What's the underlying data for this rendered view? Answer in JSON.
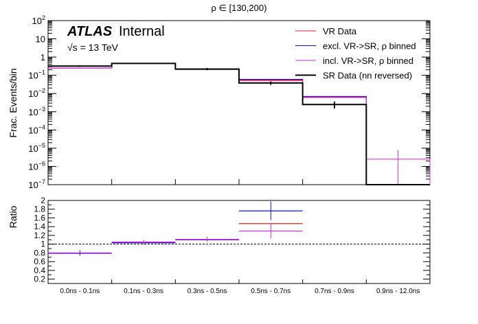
{
  "chart_data": [
    {
      "type": "step",
      "title": "ρ ∈ [130,200)",
      "ylabel": "Frac. Events/bin",
      "yscale": "log",
      "ylim": [
        1e-07,
        100
      ],
      "y_ticks": [
        {
          "value": 1e-07,
          "label": "10",
          "exp": "−7"
        },
        {
          "value": 1e-06,
          "label": "10",
          "exp": "−6"
        },
        {
          "value": 1e-05,
          "label": "10",
          "exp": "−5"
        },
        {
          "value": 0.0001,
          "label": "10",
          "exp": "−4"
        },
        {
          "value": 0.001,
          "label": "10",
          "exp": "−3"
        },
        {
          "value": 0.01,
          "label": "10",
          "exp": "−2"
        },
        {
          "value": 0.1,
          "label": "10",
          "exp": "−1"
        },
        {
          "value": 1,
          "label": "1",
          "exp": ""
        },
        {
          "value": 10,
          "label": "10",
          "exp": ""
        },
        {
          "value": 100,
          "label": "10",
          "exp": "2"
        }
      ],
      "categories": [
        "0.0ns - 0.1ns",
        "0.1ns - 0.3ns",
        "0.3ns - 0.5ns",
        "0.5ns - 0.7ns",
        "0.7ns - 0.9ns",
        "0.9ns - 12.0ns"
      ],
      "series": [
        {
          "name": "VR Data",
          "color": "#e0201b",
          "values": [
            0.25,
            0.45,
            0.21,
            0.055,
            0.0065,
            0
          ]
        },
        {
          "name": "excl. VR->SR, ρ binned",
          "color": "#0a14d0",
          "values": [
            0.25,
            0.46,
            0.21,
            0.06,
            0.007,
            0
          ]
        },
        {
          "name": "incl. VR->SR, ρ binned",
          "color": "#e020e0",
          "values": [
            0.25,
            0.46,
            0.22,
            0.05,
            0.006,
            2.5e-06
          ],
          "errors": [
            null,
            null,
            null,
            null,
            null,
            [
              1e-07,
              8e-06
            ]
          ]
        },
        {
          "name": "SR Data (nn reversed)",
          "color": "#000000",
          "values": [
            0.32,
            0.45,
            0.22,
            0.038,
            0.0025,
            0
          ],
          "errors": [
            [
              0.29,
              0.35
            ],
            [
              0.42,
              0.48
            ],
            [
              0.19,
              0.25
            ],
            [
              0.03,
              0.046
            ],
            [
              0.0015,
              0.0036
            ],
            null
          ]
        }
      ],
      "annotations": {
        "atlas": "ATLAS",
        "atlas_suffix": "Internal",
        "sqrt_s": "√s = 13 TeV"
      },
      "legend_placement": "top-right"
    },
    {
      "type": "ratio",
      "ylabel": "Ratio",
      "ylim": [
        0.1,
        2.0
      ],
      "y_ticks": [
        0.2,
        0.4,
        0.6,
        0.8,
        1,
        1.2,
        1.4,
        1.6,
        1.8,
        2
      ],
      "reference_line": 1,
      "series": [
        {
          "name": "VR Data",
          "color": "#e0201b",
          "values": [
            0.8,
            1.04,
            1.1,
            1.47,
            null,
            null
          ]
        },
        {
          "name": "excl. VR->SR, ρ binned",
          "color": "#0a14d0",
          "values": [
            0.79,
            1.03,
            1.1,
            1.76,
            null,
            null
          ],
          "errors": [
            [
              0.74,
              0.86
            ],
            null,
            null,
            [
              1.55,
              1.98
            ],
            null,
            null
          ]
        },
        {
          "name": "incl. VR->SR, ρ binned",
          "color": "#e020e0",
          "values": [
            0.8,
            1.05,
            1.11,
            1.3,
            null,
            null
          ],
          "errors": [
            null,
            [
              0.99,
              1.1
            ],
            [
              1.05,
              1.17
            ],
            [
              1.13,
              1.48
            ],
            null,
            null
          ]
        }
      ]
    }
  ]
}
